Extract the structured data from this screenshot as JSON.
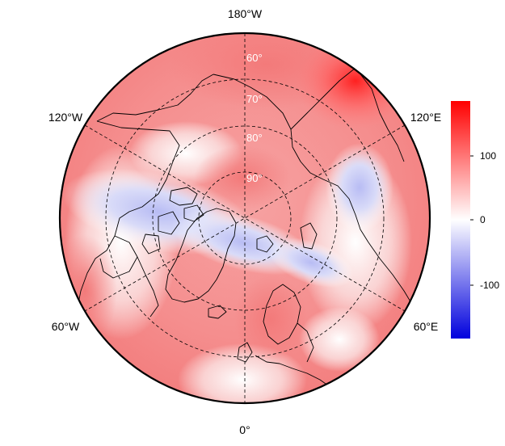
{
  "map": {
    "projection": "north-polar-stereographic",
    "longitude_labels": {
      "top": "180°W",
      "upper_left": "120°W",
      "upper_right": "120°E",
      "lower_left": "60°W",
      "lower_right": "60°E",
      "bottom": "0°"
    },
    "latitude_labels": [
      "90°",
      "80°",
      "70°",
      "60°"
    ],
    "colors": {
      "neg": "#0000dd",
      "zero": "#ffffff",
      "pos": "#ff0000",
      "coast": "#000000"
    }
  },
  "colorbar": {
    "min": -180,
    "max": 180,
    "ticks": [
      "100",
      "0",
      "-100"
    ]
  }
}
